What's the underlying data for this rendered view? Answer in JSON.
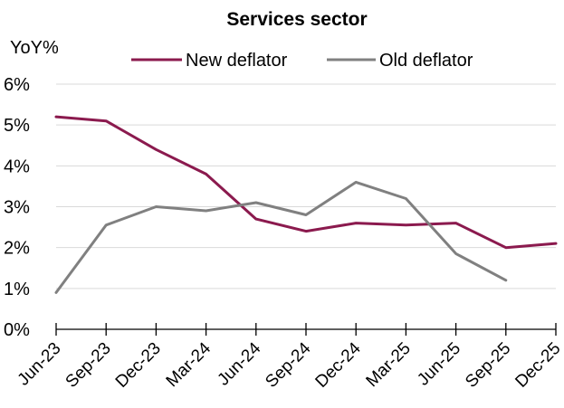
{
  "chart_data": {
    "type": "line",
    "title": "Services sector",
    "ylabel": "YoY%",
    "xlabel": "",
    "categories": [
      "Jun-23",
      "Sep-23",
      "Dec-23",
      "Mar-24",
      "Jun-24",
      "Sep-24",
      "Dec-24",
      "Mar-25",
      "Jun-25",
      "Sep-25",
      "Dec-25"
    ],
    "ylim": [
      0,
      6
    ],
    "yticks": [
      "0%",
      "1%",
      "2%",
      "3%",
      "4%",
      "5%",
      "6%"
    ],
    "grid": true,
    "legend_position": "top",
    "series": [
      {
        "name": "New deflator",
        "color": "#8b1a4e",
        "values": [
          5.2,
          5.1,
          4.4,
          3.8,
          2.7,
          2.4,
          2.6,
          2.55,
          2.6,
          2.0,
          2.1
        ]
      },
      {
        "name": "Old deflator",
        "color": "#808080",
        "values": [
          0.9,
          2.55,
          3.0,
          2.9,
          3.1,
          2.8,
          3.6,
          3.2,
          1.85,
          1.2,
          null
        ]
      }
    ]
  }
}
